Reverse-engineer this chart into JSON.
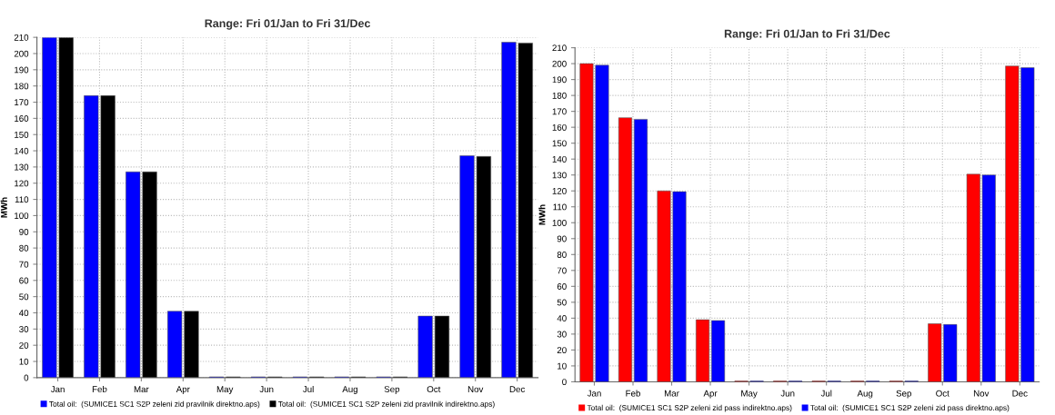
{
  "chart_data": [
    {
      "type": "bar",
      "title": "Range: Fri 01/Jan to Fri 31/Dec",
      "ylabel": "MWh",
      "categories": [
        "Jan",
        "Feb",
        "Mar",
        "Apr",
        "May",
        "Jun",
        "Jul",
        "Aug",
        "Sep",
        "Oct",
        "Nov",
        "Dec"
      ],
      "series": [
        {
          "name": "Total oil:  (SUMICE1 SC1 S2P zeleni zid pravilnik direktno.aps)",
          "color": "#0000ff",
          "values": [
            210,
            174,
            127,
            41,
            0.5,
            0.5,
            0.5,
            0.5,
            0.5,
            38,
            137,
            207
          ]
        },
        {
          "name": "Total oil:  (SUMICE1 SC1 S2P zeleni zid pravilnik indirektno.aps)",
          "color": "#000000",
          "values": [
            210,
            174,
            127,
            41,
            0.5,
            0.5,
            0.5,
            0.5,
            0.5,
            38,
            136.5,
            206.5
          ]
        }
      ],
      "ylim": [
        0,
        210
      ],
      "yticks": [
        0,
        10,
        20,
        30,
        40,
        50,
        60,
        70,
        80,
        90,
        100,
        110,
        120,
        130,
        140,
        150,
        160,
        170,
        180,
        190,
        200,
        210
      ],
      "grid": true,
      "legend": "bottom"
    },
    {
      "type": "bar",
      "title": "Range: Fri 01/Jan to Fri 31/Dec",
      "ylabel": "MWh",
      "categories": [
        "Jan",
        "Feb",
        "Mar",
        "Apr",
        "May",
        "Jun",
        "Jul",
        "Aug",
        "Sep",
        "Oct",
        "Nov",
        "Dec"
      ],
      "series": [
        {
          "name": "Total oil:  (SUMICE1 SC1 S2P zeleni zid pass indirektno.aps)",
          "color": "#ff0000",
          "values": [
            200,
            166,
            120,
            39,
            0.5,
            0.5,
            0.5,
            0.5,
            0.5,
            36.5,
            130.5,
            198.5
          ]
        },
        {
          "name": "Total oil:  (SUMICE1 SC1 S2P zeleni zid pass direktno.aps)",
          "color": "#0000ff",
          "values": [
            199,
            165,
            119.5,
            38.5,
            0.5,
            0.5,
            0.5,
            0.5,
            0.5,
            36,
            130,
            197.5
          ]
        }
      ],
      "ylim": [
        0,
        210
      ],
      "yticks": [
        0,
        10,
        20,
        30,
        40,
        50,
        60,
        70,
        80,
        90,
        100,
        110,
        120,
        130,
        140,
        150,
        160,
        170,
        180,
        190,
        200,
        210
      ],
      "grid": true,
      "legend": "bottom"
    }
  ]
}
